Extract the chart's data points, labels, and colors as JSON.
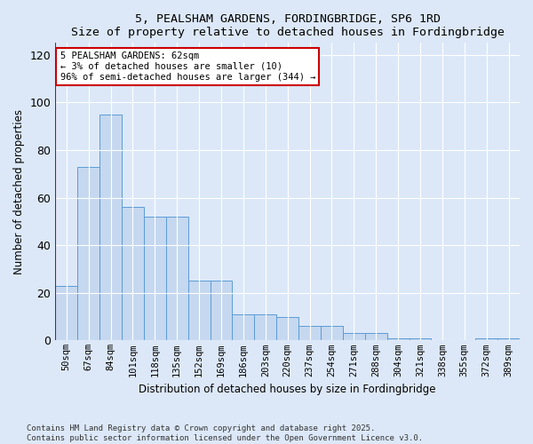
{
  "title1": "5, PEALSHAM GARDENS, FORDINGBRIDGE, SP6 1RD",
  "title2": "Size of property relative to detached houses in Fordingbridge",
  "xlabel": "Distribution of detached houses by size in Fordingbridge",
  "ylabel": "Number of detached properties",
  "categories": [
    "50sqm",
    "67sqm",
    "84sqm",
    "101sqm",
    "118sqm",
    "135sqm",
    "152sqm",
    "169sqm",
    "186sqm",
    "203sqm",
    "220sqm",
    "237sqm",
    "254sqm",
    "271sqm",
    "288sqm",
    "304sqm",
    "321sqm",
    "338sqm",
    "355sqm",
    "372sqm",
    "389sqm"
  ],
  "values": [
    23,
    73,
    95,
    56,
    52,
    52,
    25,
    25,
    11,
    11,
    10,
    6,
    6,
    3,
    3,
    1,
    1,
    0,
    0,
    1,
    1
  ],
  "bar_color": "#c5d8f0",
  "bar_edge_color": "#5b9bd5",
  "annotation_box_text": "5 PEALSHAM GARDENS: 62sqm\n← 3% of detached houses are smaller (10)\n96% of semi-detached houses are larger (344) →",
  "annotation_line_color": "#cc0000",
  "annotation_box_edge_color": "#cc0000",
  "ylim": [
    0,
    125
  ],
  "yticks": [
    0,
    20,
    40,
    60,
    80,
    100,
    120
  ],
  "background_color": "#dce8f8",
  "plot_bg_color": "#dce8f8",
  "fig_bg_color": "#dce8f8",
  "grid_color": "#ffffff",
  "footer1": "Contains HM Land Registry data © Crown copyright and database right 2025.",
  "footer2": "Contains public sector information licensed under the Open Government Licence v3.0."
}
